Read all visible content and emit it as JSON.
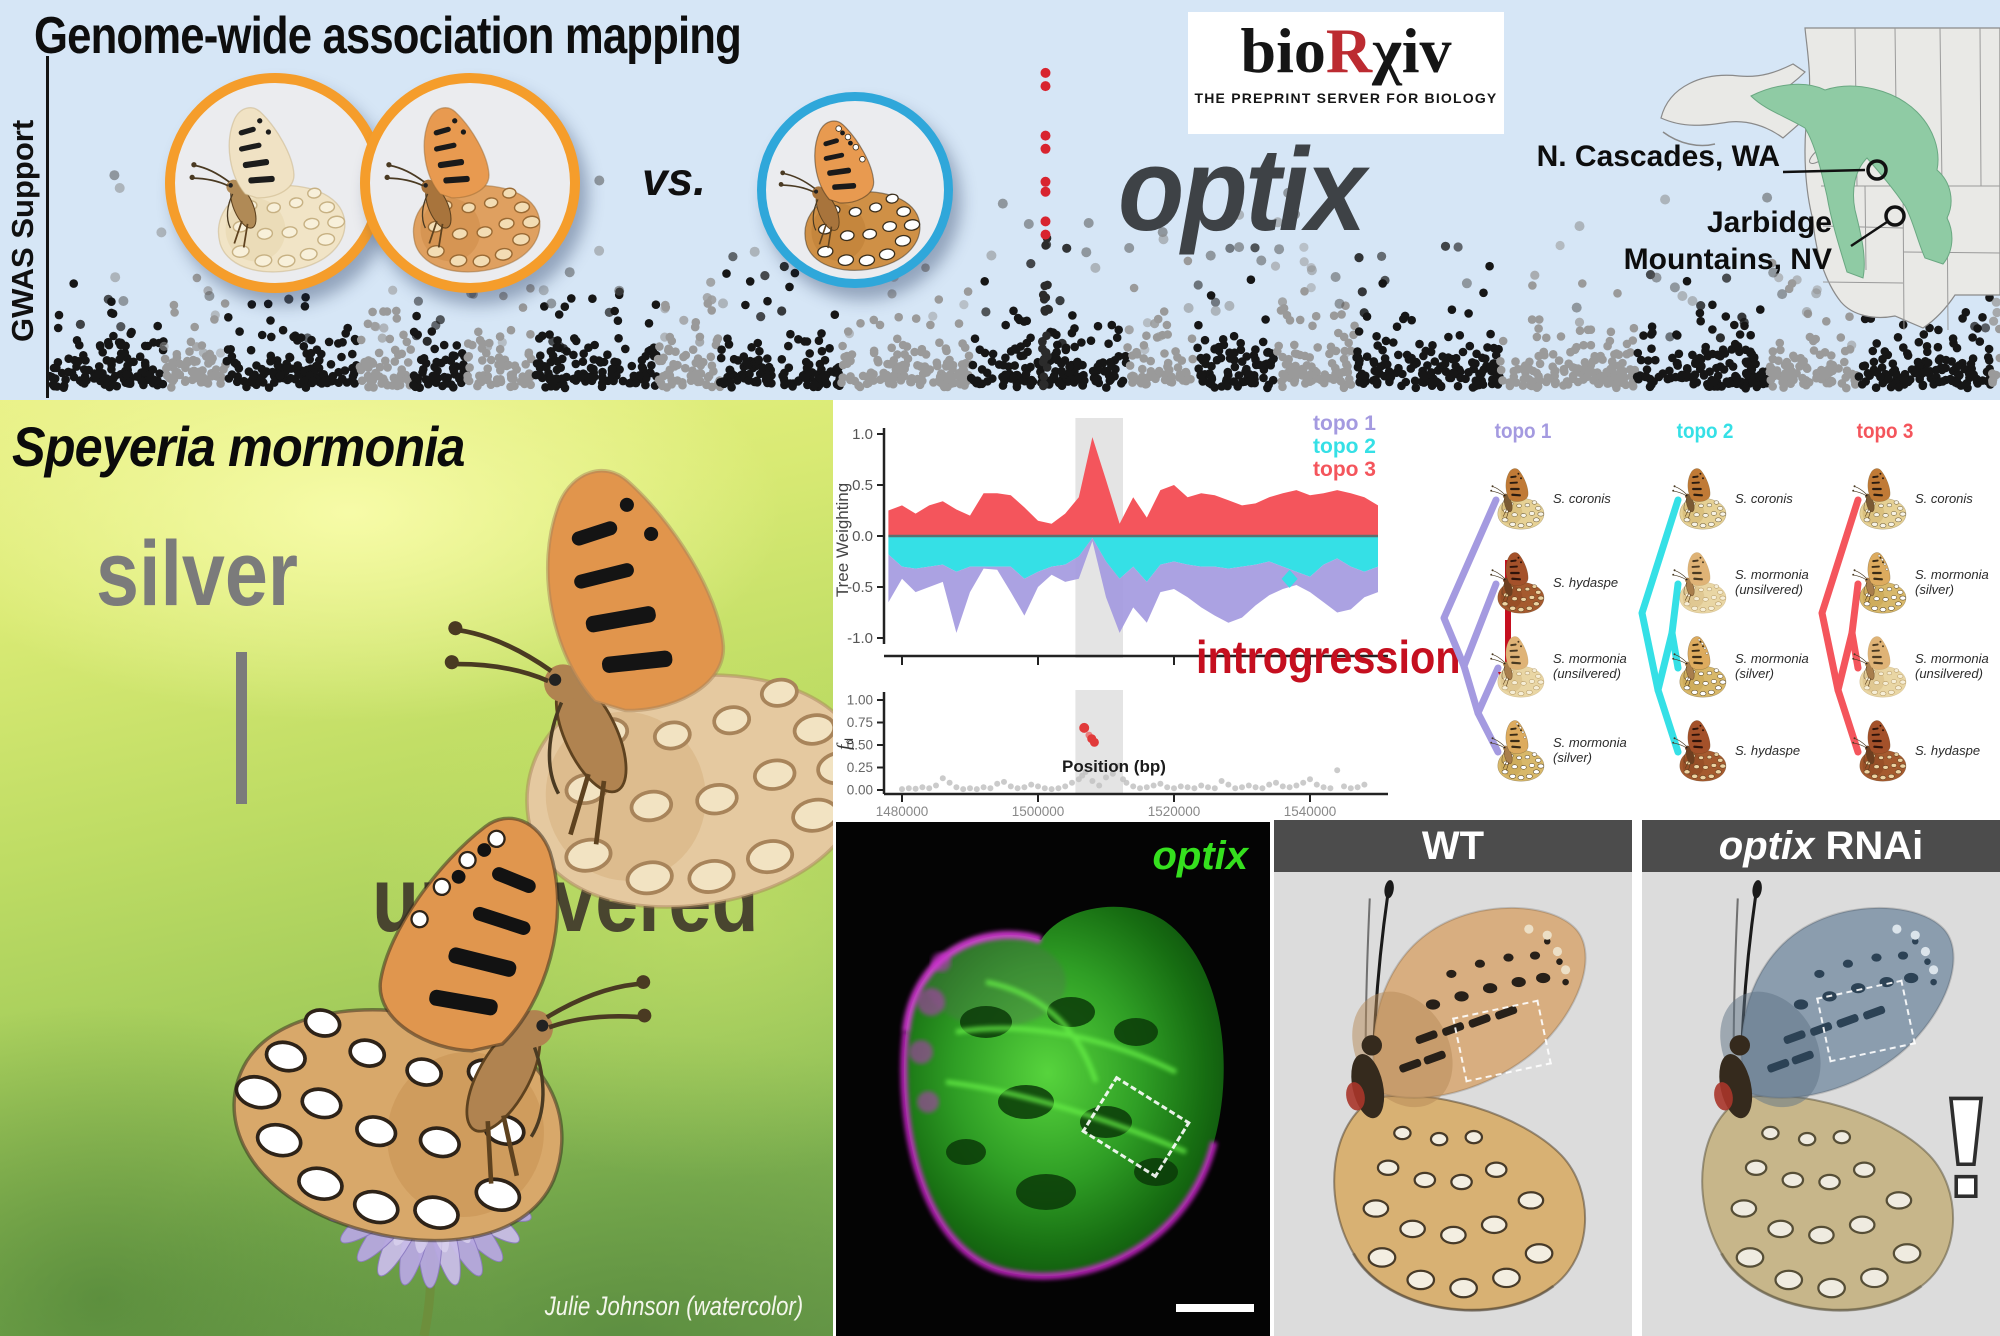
{
  "colors": {
    "banner_bg": "#d6e6f6",
    "accent_orange": "#f59d2b",
    "accent_blue": "#2fa7da",
    "biorxiv_red": "#bc2b31",
    "optix_dark": "#3e4246",
    "map_range_green": "#8fcba4",
    "manhattan_black": "#161616",
    "manhattan_gray": "#9a9a9a",
    "gwas_hit_red": "#d8242f",
    "topo1_purple": "#a49ae0",
    "topo2_cyan": "#35e0e6",
    "topo3_red": "#f4555c",
    "introgression_red": "#c50f1f",
    "optix_green": "#35e01e",
    "silver_gray": "#7b7b7b",
    "unsilvered_olive": "#49452f",
    "panel_header_gray": "#4c4c4c",
    "photo_bg_gray": "#dcdcdc"
  },
  "top_banner": {
    "title": "Genome-wide association mapping",
    "y_axis_label": "GWAS Support",
    "vs_label": "vs.",
    "biorxiv": {
      "part_bio": "bio",
      "part_r": "R",
      "part_chi": "χ",
      "part_iv": "iv",
      "tagline": "THE PREPRINT SERVER FOR BIOLOGY"
    },
    "gene_label": "optix",
    "map": {
      "location_1": "N. Cascades, WA",
      "location_2_line1": "Jarbidge",
      "location_2_line2": "Mountains, NV"
    }
  },
  "watercolor_panel": {
    "species_title": "Speyeria mormonia",
    "silver_label": "silver",
    "unsilvered_label": "unsilvered",
    "credit": "Julie Johnson (watercolor)"
  },
  "analysis_panel": {
    "tw_ylabel": "Tree Weighting",
    "fd_label_f": "f",
    "fd_label_sub": "d",
    "x_label": "Position (bp)",
    "introgression_label": "introgression",
    "legend": [
      {
        "label": "topo 1",
        "color": "#a49ae0"
      },
      {
        "label": "topo 2",
        "color": "#35e0e6"
      },
      {
        "label": "topo 3",
        "color": "#f4555c"
      }
    ],
    "topologies": [
      {
        "label": "topo 1",
        "color": "#a49ae0",
        "taxa": [
          "S. coronis",
          "S. hydaspe",
          "S. mormonia\n(unsilvered)",
          "S. mormonia\n(silver)"
        ],
        "introgression_arrow": {
          "from": "S. hydaspe",
          "to": "S. mormonia (unsilvered)"
        }
      },
      {
        "label": "topo 2",
        "color": "#35e0e6",
        "taxa": [
          "S. coronis",
          "S. mormonia\n(unsilvered)",
          "S. mormonia\n(silver)",
          "S. hydaspe"
        ]
      },
      {
        "label": "topo 3",
        "color": "#f4555c",
        "taxa": [
          "S. coronis",
          "S. mormonia\n(silver)",
          "S. mormonia\n(unsilvered)",
          "S. hydaspe"
        ]
      }
    ]
  },
  "expression_panel": {
    "gene_label": "optix"
  },
  "rnai_panel": {
    "wt_label": "WT",
    "rnai_gene": "optix",
    "rnai_suffix": " RNAi"
  },
  "chart_data": [
    {
      "id": "gwas_manhattan",
      "type": "scatter",
      "variant": "manhattan",
      "title": "Genome-wide association mapping",
      "ylabel": "GWAS Support",
      "n_chromosome_blocks": 26,
      "block_colors": [
        "#161616",
        "#9a9a9a"
      ],
      "significant_peak": {
        "x_fraction": 0.511,
        "gene": "optix",
        "color": "#d8242f",
        "point_heights_fraction": [
          0.97,
          0.93,
          0.78,
          0.74,
          0.64,
          0.61,
          0.52,
          0.48
        ]
      },
      "background_max_fraction": 0.45
    },
    {
      "id": "tree_weighting",
      "type": "area",
      "xlabel": "Position (bp)",
      "ylabel": "Tree Weighting",
      "ylim": [
        -1.05,
        1.05
      ],
      "yticks": [
        1.0,
        0.5,
        0.0,
        -0.5,
        -1.0
      ],
      "x_start": 1478000,
      "x_step": 2000,
      "xticks": [
        1480000,
        1500000,
        1520000,
        1540000
      ],
      "highlight_region": [
        1505500,
        1512500
      ],
      "series": [
        {
          "name": "topo 3",
          "color": "#f4555c",
          "orientation": "up",
          "values": [
            0.25,
            0.3,
            0.22,
            0.3,
            0.34,
            0.26,
            0.2,
            0.42,
            0.42,
            0.4,
            0.28,
            0.15,
            0.12,
            0.22,
            0.38,
            0.97,
            0.55,
            0.12,
            0.38,
            0.18,
            0.45,
            0.5,
            0.38,
            0.42,
            0.4,
            0.35,
            0.3,
            0.32,
            0.38,
            0.42,
            0.45,
            0.4,
            0.42,
            0.45,
            0.42,
            0.38,
            0.3
          ]
        },
        {
          "name": "topo 2",
          "color": "#35e0e6",
          "orientation": "down",
          "outlier": [
            1537000,
            -0.42
          ],
          "values": [
            -0.18,
            -0.3,
            -0.32,
            -0.3,
            -0.28,
            -0.35,
            -0.3,
            -0.3,
            -0.3,
            -0.3,
            -0.42,
            -0.35,
            -0.3,
            -0.28,
            -0.2,
            -0.02,
            -0.25,
            -0.42,
            -0.3,
            -0.45,
            -0.28,
            -0.25,
            -0.28,
            -0.3,
            -0.3,
            -0.32,
            -0.3,
            -0.28,
            -0.25,
            -0.3,
            -0.35,
            -0.4,
            -0.28,
            -0.22,
            -0.3,
            -0.35,
            -0.3
          ]
        },
        {
          "name": "topo 1",
          "color": "#a49ae0",
          "orientation": "down_outer",
          "values": [
            -0.65,
            -0.42,
            -0.55,
            -0.5,
            -0.45,
            -0.95,
            -0.55,
            -0.32,
            -0.33,
            -0.55,
            -0.78,
            -0.5,
            -0.38,
            -0.45,
            -0.42,
            -0.05,
            -0.6,
            -0.95,
            -0.7,
            -0.85,
            -0.55,
            -0.52,
            -0.6,
            -0.7,
            -0.78,
            -0.85,
            -0.8,
            -0.68,
            -0.58,
            -0.52,
            -0.48,
            -0.55,
            -0.65,
            -0.75,
            -0.72,
            -0.6,
            -0.55
          ]
        }
      ]
    },
    {
      "id": "fd_scan",
      "type": "scatter",
      "xlabel": "Position (bp)",
      "ylabel": "fd",
      "ylim": [
        0,
        1.05
      ],
      "yticks": [
        1.0,
        0.75,
        0.5,
        0.25,
        0.0
      ],
      "xticks": [
        1480000,
        1500000,
        1520000,
        1540000
      ],
      "highlight_region": [
        1505500,
        1512500
      ],
      "gray_color": "#c2c2c2",
      "red_color": "#e13a3a",
      "points_gray": [
        [
          1480000,
          0.01
        ],
        [
          1481000,
          0.02
        ],
        [
          1482000,
          0.015
        ],
        [
          1483000,
          0.03
        ],
        [
          1484000,
          0.02
        ],
        [
          1485000,
          0.05
        ],
        [
          1486000,
          0.13
        ],
        [
          1487000,
          0.08
        ],
        [
          1488000,
          0.03
        ],
        [
          1489000,
          0.01
        ],
        [
          1490000,
          0.02
        ],
        [
          1491000,
          0.01
        ],
        [
          1492000,
          0.03
        ],
        [
          1493000,
          0.02
        ],
        [
          1494000,
          0.07
        ],
        [
          1495000,
          0.09
        ],
        [
          1496000,
          0.04
        ],
        [
          1497000,
          0.02
        ],
        [
          1498000,
          0.03
        ],
        [
          1499000,
          0.06
        ],
        [
          1500000,
          0.04
        ],
        [
          1501000,
          0.02
        ],
        [
          1502000,
          0.01
        ],
        [
          1503000,
          0.02
        ],
        [
          1504000,
          0.04
        ],
        [
          1505000,
          0.08
        ],
        [
          1506000,
          0.12
        ],
        [
          1506500,
          0.16
        ],
        [
          1507000,
          0.2
        ],
        [
          1508000,
          0.1
        ],
        [
          1509000,
          0.05
        ],
        [
          1510000,
          0.14
        ],
        [
          1511000,
          0.18
        ],
        [
          1512000,
          0.27
        ],
        [
          1512500,
          0.12
        ],
        [
          1513000,
          0.08
        ],
        [
          1514000,
          0.04
        ],
        [
          1515000,
          0.02
        ],
        [
          1516000,
          0.03
        ],
        [
          1517000,
          0.05
        ],
        [
          1518000,
          0.07
        ],
        [
          1519000,
          0.03
        ],
        [
          1520000,
          0.02
        ],
        [
          1521000,
          0.04
        ],
        [
          1522000,
          0.03
        ],
        [
          1523000,
          0.02
        ],
        [
          1524000,
          0.05
        ],
        [
          1525000,
          0.03
        ],
        [
          1526000,
          0.02
        ],
        [
          1527000,
          0.1
        ],
        [
          1528000,
          0.06
        ],
        [
          1529000,
          0.02
        ],
        [
          1530000,
          0.03
        ],
        [
          1531000,
          0.05
        ],
        [
          1532000,
          0.03
        ],
        [
          1533000,
          0.02
        ],
        [
          1534000,
          0.06
        ],
        [
          1535000,
          0.08
        ],
        [
          1536000,
          0.04
        ],
        [
          1537000,
          0.03
        ],
        [
          1538000,
          0.05
        ],
        [
          1539000,
          0.08
        ],
        [
          1540000,
          0.12
        ],
        [
          1541000,
          0.06
        ],
        [
          1542000,
          0.03
        ],
        [
          1543000,
          0.02
        ],
        [
          1544000,
          0.22
        ],
        [
          1545000,
          0.04
        ],
        [
          1546000,
          0.02
        ],
        [
          1547000,
          0.03
        ],
        [
          1548000,
          0.06
        ]
      ],
      "points_red": [
        [
          1506800,
          0.69
        ],
        [
          1507500,
          0.61
        ],
        [
          1507900,
          0.57
        ],
        [
          1508300,
          0.53
        ]
      ]
    }
  ]
}
